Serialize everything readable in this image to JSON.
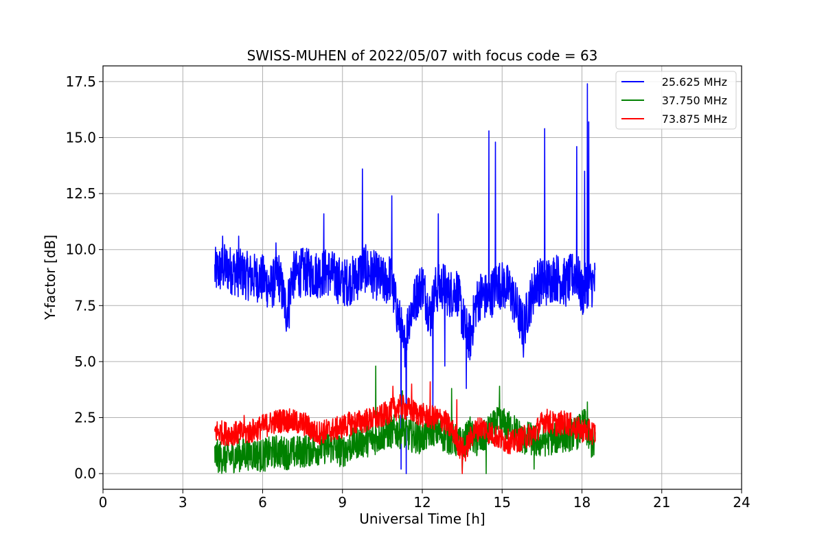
{
  "chart_data": {
    "type": "line",
    "title": "SWISS-MUHEN of 2022/05/07 with focus code = 63",
    "xlabel": "Universal Time [h]",
    "ylabel": "Y-factor [dB]",
    "xlim": [
      0,
      24
    ],
    "ylim": [
      -0.7,
      18.2
    ],
    "x_ticks": [
      0,
      3,
      6,
      9,
      12,
      15,
      18,
      21,
      24
    ],
    "x_tick_labels": [
      "0",
      "3",
      "6",
      "9",
      "12",
      "15",
      "18",
      "21",
      "24"
    ],
    "y_ticks": [
      0.0,
      2.5,
      5.0,
      7.5,
      10.0,
      12.5,
      15.0,
      17.5
    ],
    "y_tick_labels": [
      "0.0",
      "2.5",
      "5.0",
      "7.5",
      "10.0",
      "12.5",
      "15.0",
      "17.5"
    ],
    "grid": true,
    "legend_position": "top-right",
    "series": [
      {
        "name": "25.625 MHz",
        "color": "#0000ff",
        "x": [
          4.2,
          4.6,
          5.0,
          5.5,
          6.0,
          6.3,
          6.6,
          6.9,
          7.1,
          7.5,
          8.0,
          8.5,
          9.0,
          9.5,
          9.8,
          10.0,
          10.3,
          10.6,
          10.8,
          11.0,
          11.2,
          11.3,
          11.5,
          11.8,
          12.0,
          12.3,
          12.5,
          12.8,
          13.0,
          13.3,
          13.6,
          13.8,
          14.0,
          14.2,
          14.5,
          14.8,
          15.0,
          15.3,
          15.8,
          16.0,
          16.3,
          16.6,
          17.0,
          17.4,
          17.8,
          18.0,
          18.2,
          18.5
        ],
        "y": [
          9.0,
          9.2,
          9.0,
          8.8,
          8.7,
          8.3,
          8.9,
          7.2,
          8.8,
          9.0,
          8.9,
          9.0,
          8.5,
          8.7,
          9.2,
          9.0,
          8.8,
          8.5,
          8.8,
          7.5,
          6.5,
          5.5,
          7.0,
          8.0,
          8.5,
          7.0,
          8.2,
          8.4,
          8.0,
          8.2,
          6.5,
          6.0,
          7.5,
          8.0,
          7.8,
          8.5,
          8.4,
          8.2,
          6.5,
          7.5,
          8.6,
          8.5,
          8.8,
          8.5,
          9.0,
          8.0,
          8.5,
          8.5
        ],
        "spikes": [
          [
            4.5,
            10.6
          ],
          [
            5.1,
            10.6
          ],
          [
            6.5,
            10.3
          ],
          [
            7.0,
            6.5
          ],
          [
            8.3,
            11.6
          ],
          [
            9.75,
            13.6
          ],
          [
            10.85,
            12.4
          ],
          [
            11.2,
            0.2
          ],
          [
            11.4,
            0.0
          ],
          [
            12.4,
            2.8
          ],
          [
            12.6,
            11.6
          ],
          [
            12.85,
            4.8
          ],
          [
            13.65,
            3.8
          ],
          [
            14.5,
            15.3
          ],
          [
            14.75,
            14.8
          ],
          [
            15.8,
            5.2
          ],
          [
            16.6,
            15.4
          ],
          [
            17.8,
            14.6
          ],
          [
            18.1,
            13.5
          ],
          [
            18.2,
            17.4
          ],
          [
            18.25,
            15.7
          ]
        ]
      },
      {
        "name": "37.750 MHz",
        "color": "#008000",
        "x": [
          4.2,
          4.6,
          5.0,
          5.5,
          6.0,
          6.5,
          7.0,
          7.5,
          8.0,
          8.5,
          9.0,
          9.5,
          10.0,
          10.3,
          10.6,
          11.0,
          11.3,
          11.6,
          12.0,
          12.4,
          12.8,
          13.2,
          13.5,
          13.8,
          14.0,
          14.3,
          14.6,
          14.9,
          15.2,
          15.5,
          15.8,
          16.0,
          16.3,
          16.6,
          17.0,
          17.4,
          17.8,
          18.1,
          18.3,
          18.5
        ],
        "y": [
          0.8,
          0.7,
          0.8,
          0.9,
          0.8,
          1.0,
          0.9,
          1.0,
          1.1,
          1.2,
          1.0,
          1.4,
          1.5,
          1.6,
          1.8,
          1.9,
          1.8,
          1.7,
          1.6,
          2.0,
          1.7,
          1.5,
          1.3,
          1.8,
          1.4,
          1.6,
          2.0,
          2.3,
          2.1,
          1.9,
          1.5,
          1.6,
          1.4,
          1.5,
          1.6,
          1.7,
          1.8,
          2.2,
          1.5,
          1.2
        ],
        "spikes": [
          [
            10.25,
            4.8
          ],
          [
            11.25,
            3.7
          ],
          [
            13.1,
            3.8
          ],
          [
            13.5,
            0.1
          ],
          [
            14.4,
            0.0
          ],
          [
            14.9,
            3.9
          ],
          [
            16.2,
            0.2
          ],
          [
            18.2,
            3.2
          ]
        ]
      },
      {
        "name": "73.875 MHz",
        "color": "#ff0000",
        "x": [
          4.2,
          4.6,
          5.0,
          5.3,
          5.6,
          6.0,
          6.4,
          6.8,
          7.2,
          7.6,
          8.0,
          8.4,
          8.8,
          9.2,
          9.6,
          10.0,
          10.4,
          10.8,
          11.2,
          11.6,
          12.0,
          12.4,
          12.8,
          13.2,
          13.4,
          13.6,
          13.9,
          14.2,
          14.6,
          15.0,
          15.4,
          15.8,
          16.2,
          16.6,
          17.0,
          17.4,
          17.8,
          18.2,
          18.5
        ],
        "y": [
          1.9,
          1.8,
          1.8,
          1.8,
          1.9,
          2.1,
          2.3,
          2.4,
          2.3,
          2.2,
          1.8,
          1.9,
          2.0,
          2.2,
          2.3,
          2.4,
          2.5,
          2.8,
          3.0,
          2.8,
          2.6,
          2.5,
          2.4,
          1.8,
          1.2,
          1.0,
          1.8,
          2.1,
          1.8,
          1.5,
          1.4,
          1.6,
          1.8,
          2.4,
          2.2,
          2.3,
          2.0,
          1.9,
          1.8
        ],
        "spikes": [
          [
            5.3,
            2.6
          ],
          [
            10.9,
            3.9
          ],
          [
            11.6,
            4.0
          ],
          [
            12.3,
            4.1
          ],
          [
            13.5,
            0.0
          ],
          [
            13.3,
            3.3
          ]
        ]
      }
    ]
  }
}
